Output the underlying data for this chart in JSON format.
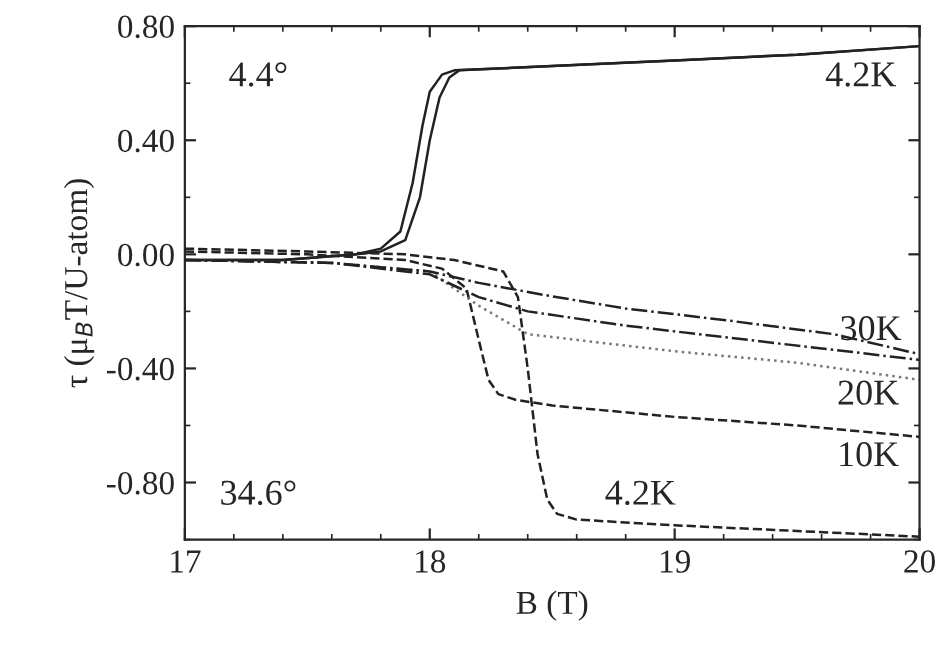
{
  "chart_data": {
    "type": "line",
    "xlabel": "B (T)",
    "ylabel": "τ (μ$_{B}$T/U-atom)",
    "xlim": [
      17,
      20
    ],
    "ylim": [
      -1.0,
      0.8
    ],
    "xticks": [
      17,
      18,
      19,
      20
    ],
    "yticks": [
      {
        "value": 0.8,
        "label": "0.80"
      },
      {
        "value": 0.4,
        "label": "0.40"
      },
      {
        "value": 0,
        "label": "0.00"
      },
      {
        "value": -0.4,
        "label": "-0.40"
      },
      {
        "value": -0.8,
        "label": "-0.80"
      }
    ],
    "grid": false,
    "legend": false,
    "series": [
      {
        "color": "#222222",
        "line_style": "solid",
        "x": [
          17,
          17.4,
          17.7,
          17.8,
          17.88,
          17.93,
          17.97,
          18.0,
          18.05,
          18.1,
          18.5,
          19.0,
          19.5,
          20.0
        ],
        "values": [
          -0.02,
          -0.02,
          0.0,
          0.02,
          0.08,
          0.25,
          0.45,
          0.57,
          0.63,
          0.645,
          0.66,
          0.68,
          0.7,
          0.73
        ]
      },
      {
        "color": "#222222",
        "line_style": "solid",
        "x": [
          17,
          17.4,
          17.7,
          17.8,
          17.9,
          17.96,
          18.0,
          18.04,
          18.08,
          18.12,
          18.5,
          19.0,
          19.5,
          20.0
        ],
        "values": [
          -0.02,
          -0.02,
          0.0,
          0.01,
          0.05,
          0.2,
          0.4,
          0.55,
          0.62,
          0.645,
          0.66,
          0.68,
          0.7,
          0.73
        ]
      },
      {
        "color": "#222222",
        "line_style": "dashed",
        "x": [
          17,
          17.5,
          17.9,
          18.1,
          18.3,
          18.36,
          18.4,
          18.44,
          18.48,
          18.52,
          18.6,
          19.0,
          19.5,
          20.0
        ],
        "values": [
          0.02,
          0.01,
          0.0,
          -0.02,
          -0.06,
          -0.15,
          -0.4,
          -0.7,
          -0.86,
          -0.91,
          -0.93,
          -0.95,
          -0.97,
          -0.99
        ]
      },
      {
        "color": "#222222",
        "line_style": "dashed",
        "x": [
          17,
          17.5,
          17.9,
          18.05,
          18.15,
          18.2,
          18.24,
          18.28,
          18.35,
          18.5,
          19.0,
          19.5,
          20.0
        ],
        "values": [
          0.01,
          0.0,
          -0.02,
          -0.05,
          -0.12,
          -0.3,
          -0.44,
          -0.49,
          -0.51,
          -0.53,
          -0.57,
          -0.6,
          -0.64
        ]
      },
      {
        "color": "#777777",
        "line_style": "dotted",
        "x": [
          17,
          17.6,
          18.0,
          18.2,
          18.4,
          18.7,
          19.0,
          19.5,
          20.0
        ],
        "values": [
          -0.02,
          -0.03,
          -0.06,
          -0.18,
          -0.28,
          -0.31,
          -0.34,
          -0.38,
          -0.44
        ]
      },
      {
        "color": "#222222",
        "line_style": "dashdot",
        "x": [
          17,
          17.6,
          18.0,
          18.2,
          18.45,
          18.8,
          19.2,
          19.65,
          20.0
        ],
        "values": [
          -0.02,
          -0.03,
          -0.06,
          -0.1,
          -0.14,
          -0.19,
          -0.23,
          -0.28,
          -0.35
        ]
      },
      {
        "color": "#222222",
        "line_style": "dashdot",
        "x": [
          17,
          17.6,
          18.0,
          18.2,
          18.4,
          18.8,
          19.2,
          19.6,
          20.0
        ],
        "values": [
          -0.02,
          -0.03,
          -0.07,
          -0.15,
          -0.2,
          -0.25,
          -0.29,
          -0.33,
          -0.37
        ]
      }
    ],
    "annotations": [
      "4.4°",
      "4.2K",
      {
        "text": "30K",
        "x": 19.8,
        "y": -0.27
      },
      "20K",
      "10K",
      "34.6°",
      "4.2K"
    ]
  }
}
